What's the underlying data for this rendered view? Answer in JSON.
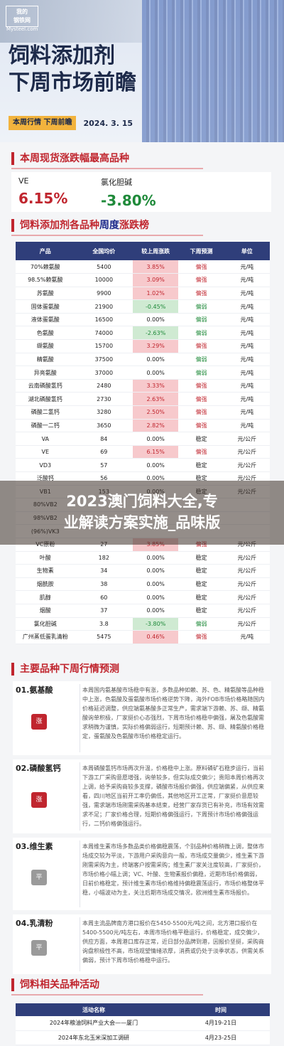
{
  "header": {
    "logo_line1": "我的",
    "logo_line2": "钢铁网",
    "logo_line3": "Mysteel.com",
    "title_line1": "饲料添加剂",
    "title_line2": "下周市场前瞻",
    "tag": "本周行情   下周前瞻",
    "date": "2024. 3. 15"
  },
  "top_movers": {
    "title": "本周现货涨跌幅最高品种",
    "items": [
      {
        "name": "VE",
        "value": "6.15%",
        "color": "#c0252e"
      },
      {
        "name": "氯化胆碱",
        "value": "-3.80%",
        "color": "#1f8a3a"
      }
    ]
  },
  "weekly_table": {
    "title_prefix": "饲料添加剂各品种",
    "title_highlight": "周度",
    "title_suffix": "涨跌榜",
    "headers": [
      "产品",
      "全国均价",
      "较上周涨跌",
      "下周预测",
      "单位"
    ],
    "rows": [
      {
        "name": "70%赖氨酸",
        "price": "5400",
        "chg": "3.85%",
        "dir": "up",
        "fc": "偏强",
        "unit": "元/吨"
      },
      {
        "name": "98.5%赖氨酸",
        "price": "10000",
        "chg": "3.09%",
        "dir": "up",
        "fc": "偏强",
        "unit": "元/吨"
      },
      {
        "name": "苏氨酸",
        "price": "9900",
        "chg": "1.02%",
        "dir": "up",
        "fc": "偏强",
        "unit": "元/吨"
      },
      {
        "name": "固体蛋氨酸",
        "price": "21900",
        "chg": "-0.45%",
        "dir": "down",
        "fc": "偏弱",
        "unit": "元/吨"
      },
      {
        "name": "液体蛋氨酸",
        "price": "16500",
        "chg": "0.00%",
        "dir": "flat",
        "fc": "偏弱",
        "unit": "元/吨"
      },
      {
        "name": "色氨酸",
        "price": "74000",
        "chg": "-2.63%",
        "dir": "down",
        "fc": "偏弱",
        "unit": "元/吨"
      },
      {
        "name": "缬氨酸",
        "price": "15700",
        "chg": "3.29%",
        "dir": "up",
        "fc": "偏强",
        "unit": "元/吨"
      },
      {
        "name": "精氨酸",
        "price": "37500",
        "chg": "0.00%",
        "dir": "flat",
        "fc": "偏弱",
        "unit": "元/吨"
      },
      {
        "name": "异亮氨酸",
        "price": "37000",
        "chg": "0.00%",
        "dir": "flat",
        "fc": "偏弱",
        "unit": "元/吨"
      },
      {
        "name": "云南磷酸氢钙",
        "price": "2480",
        "chg": "3.33%",
        "dir": "up",
        "fc": "偏强",
        "unit": "元/吨"
      },
      {
        "name": "湖北磷酸氢钙",
        "price": "2730",
        "chg": "2.63%",
        "dir": "up",
        "fc": "偏强",
        "unit": "元/吨"
      },
      {
        "name": "磷酸二氢钙",
        "price": "3280",
        "chg": "2.50%",
        "dir": "up",
        "fc": "偏强",
        "unit": "元/吨"
      },
      {
        "name": "磷酸一二钙",
        "price": "3650",
        "chg": "2.82%",
        "dir": "up",
        "fc": "偏强",
        "unit": "元/吨"
      },
      {
        "name": "VA",
        "price": "84",
        "chg": "0.00%",
        "dir": "flat",
        "fc": "稳定",
        "unit": "元/公斤"
      },
      {
        "name": "VE",
        "price": "69",
        "chg": "6.15%",
        "dir": "up",
        "fc": "偏强",
        "unit": "元/公斤"
      },
      {
        "name": "VD3",
        "price": "57",
        "chg": "0.00%",
        "dir": "flat",
        "fc": "稳定",
        "unit": "元/公斤"
      },
      {
        "name": "泛酸钙",
        "price": "56",
        "chg": "0.00%",
        "dir": "flat",
        "fc": "稳定",
        "unit": "元/公斤"
      },
      {
        "name": "VB1",
        "price": "153",
        "chg": "0.00%",
        "dir": "flat",
        "fc": "稳定",
        "unit": "元/公斤"
      },
      {
        "name": "80%VB2",
        "price": "",
        "chg": "",
        "dir": "flat",
        "fc": "",
        "unit": ""
      },
      {
        "name": "98%VB2",
        "price": "",
        "chg": "",
        "dir": "flat",
        "fc": "",
        "unit": ""
      },
      {
        "name": "(96%)VK3",
        "price": "",
        "chg": "",
        "dir": "flat",
        "fc": "",
        "unit": ""
      },
      {
        "name": "VC原粉",
        "price": "27",
        "chg": "3.85%",
        "dir": "up",
        "fc": "偏强",
        "unit": "元/公斤"
      },
      {
        "name": "叶酸",
        "price": "182",
        "chg": "0.00%",
        "dir": "flat",
        "fc": "稳定",
        "unit": "元/公斤"
      },
      {
        "name": "生物素",
        "price": "34",
        "chg": "0.00%",
        "dir": "flat",
        "fc": "稳定",
        "unit": "元/公斤"
      },
      {
        "name": "烟酰胺",
        "price": "38",
        "chg": "0.00%",
        "dir": "flat",
        "fc": "稳定",
        "unit": "元/公斤"
      },
      {
        "name": "肌醇",
        "price": "60",
        "chg": "0.00%",
        "dir": "flat",
        "fc": "稳定",
        "unit": "元/公斤"
      },
      {
        "name": "烟酸",
        "price": "37",
        "chg": "0.00%",
        "dir": "flat",
        "fc": "稳定",
        "unit": "元/公斤"
      },
      {
        "name": "氯化胆碱",
        "price": "3.8",
        "chg": "-3.80%",
        "dir": "down",
        "fc": "偏弱",
        "unit": "元/公斤"
      },
      {
        "name": "广州蒸低蛋乳清粉",
        "price": "5475",
        "chg": "0.46%",
        "dir": "up",
        "fc": "偏强",
        "unit": "元/吨"
      }
    ]
  },
  "banner": {
    "line1": "2023澳门饲料大全,专",
    "line2": "业解读方案实施_品味版"
  },
  "forecast": {
    "title": "主要品种下周行情预测",
    "items": [
      {
        "head": "01.氨基酸",
        "badge": "涨",
        "badge_color": "#c0252e",
        "text": "本周国内氨基酸市场稳中有涨，多数品种如赖、苏、色、精氨酸等品种稳中上涨，色氨酸及蛋氨酸市场价格逆势下降，海外FOB市场价格略随国内价格延迟调整，供应端氨基酸多正常生产，需求端下游赖、苏、缬、精氨酸询单积极，厂家挺价心态强烈，下周市场价格稳中偏强，屠及色氨酸需求稍微为谨慎，实际价格偏弱运行，短期预计赖、苏、缬、精氨酸价格稳定，蛋氨酸及色氨酸市场价格稳定运行。"
      },
      {
        "head": "02.磷酸氢钙",
        "badge": "涨",
        "badge_color": "#c0252e",
        "text": "本周磷酸氢钙市场再次升温，价格稳中上涨。原料磷矿石稳步运行，当前下游工厂采购意愿增强，询单较多，但实际成交偏少；贵阳本周价格再次上调，给予采购商较多支撑，磷酸市场报价偏强，供应端偏紧，从供应来看，四川地区当前开工率仍偏低，其他地区开工正常，厂家挺价意愿较强，需求端市场刚需采购基本结束，经营厂家存货已有补充，市场有效需求不足；厂家价格合理，短期价格偏强运行，下周预计市场价格偏强运行，二钙价格偏强运行。"
      },
      {
        "head": "03.维生素",
        "badge": "平",
        "badge_color": "#9a9a9a",
        "text": "本周维生素市场多数品类价格偏稳震荡，个别品种价格稍微上调，整体市场成交较为平淡，下游用户采购意向一般，市场成交量偏少，维生素下游刚需采购为主，终端客户按需采购；维生素厂家关注度较高，厂家挺价，市场价格小幅上调；VC、叶酸、生物素报价偏稳，近期市场价格偏弱，日前价格稳定，预计维生素市场价格维持偏稳震荡运行，市场价格整体平稳，小幅波动为主，关注后期市场成交情况，欧洲维生素市场报价。"
      },
      {
        "head": "04.乳清粉",
        "badge": "平",
        "badge_color": "#9a9a9a",
        "text": "本周主流品牌南方港口报价在5450-5500元/吨之间，北方港口报价在5400-5500元/吨左右，本周市场价格平稳运行，价格稳定，成交偏少，供应方面，本周港口库存正常，近日部分品牌到港，因报价坚挺，采购商询盘积极性不高，市场观望情绪浓厚，消费或仍处于淡季状态，供需关系偏弱，预计下周市场价格稳中运行。"
      }
    ]
  },
  "activities": {
    "title": "饲料相关品种活动",
    "headers": [
      "活动名称",
      "时间"
    ],
    "rows": [
      {
        "name": "2024年粮油饲料产业大会——厦门",
        "time": "4月19-21日"
      },
      {
        "name": "2024年东北玉米深加工调研",
        "time": "4月23-25日"
      }
    ]
  }
}
